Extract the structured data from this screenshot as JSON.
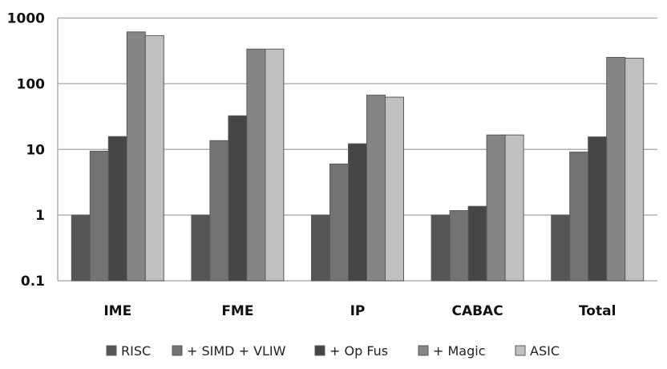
{
  "chart_data": {
    "type": "bar",
    "title": "",
    "xlabel": "",
    "ylabel": "",
    "yscale": "log",
    "ylim": [
      0.1,
      1000
    ],
    "yticks": [
      "0.1",
      "1",
      "10",
      "100",
      "1000"
    ],
    "grid": true,
    "legend_position": "bottom",
    "categories": [
      "IME",
      "FME",
      "IP",
      "CABAC",
      "Total"
    ],
    "series": [
      {
        "name": "RISC",
        "color": "#555555",
        "values": [
          1,
          1,
          1,
          1,
          1
        ]
      },
      {
        "name": "+ SIMD + VLIW",
        "color": "#737373",
        "values": [
          9.4,
          13.6,
          6.0,
          1.17,
          9.1
        ]
      },
      {
        "name": "+ Op Fus",
        "color": "#464646",
        "values": [
          15.7,
          32.5,
          12.2,
          1.36,
          15.5
        ]
      },
      {
        "name": "+ Magic",
        "color": "#858585",
        "values": [
          615,
          337,
          67,
          16.6,
          252
        ]
      },
      {
        "name": "ASIC",
        "color": "#c0c0c0",
        "values": [
          540,
          337,
          62.5,
          16.6,
          245
        ]
      }
    ]
  }
}
